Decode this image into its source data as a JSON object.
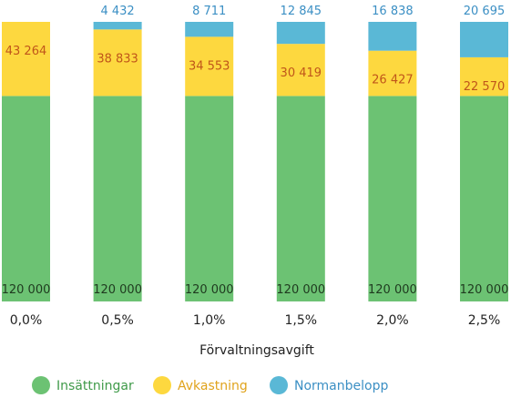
{
  "chart_data": {
    "type": "bar",
    "stacked": true,
    "xlabel": "Förvaltningsavgift",
    "categories": [
      "0,0%",
      "0,5%",
      "1,0%",
      "1,5%",
      "2,0%",
      "2,5%"
    ],
    "series": [
      {
        "name": "Insättningar",
        "color": "#6cc273",
        "label_color": "#1f3a1f",
        "values": [
          120000,
          120000,
          120000,
          120000,
          120000,
          120000
        ],
        "labels": [
          "120 000",
          "120 000",
          "120 000",
          "120 000",
          "120 000",
          "120 000"
        ]
      },
      {
        "name": "Avkastning",
        "color": "#fdd83f",
        "label_color": "#c0561a",
        "values": [
          43264,
          38833,
          34553,
          30419,
          26427,
          22570
        ],
        "labels": [
          "43 264",
          "38 833",
          "34 553",
          "30 419",
          "26 427",
          "22 570"
        ]
      },
      {
        "name": "Normanbelopp",
        "color": "#5ab8d6",
        "label_color": "#3b8fc4",
        "values": [
          0,
          4432,
          8711,
          12845,
          16838,
          20695
        ],
        "labels": [
          "",
          "4 432",
          "8 711",
          "12 845",
          "16 838",
          "20 695"
        ]
      }
    ],
    "ylim": [
      0,
      163264
    ],
    "grid": false,
    "legend_position": "bottom-left"
  }
}
